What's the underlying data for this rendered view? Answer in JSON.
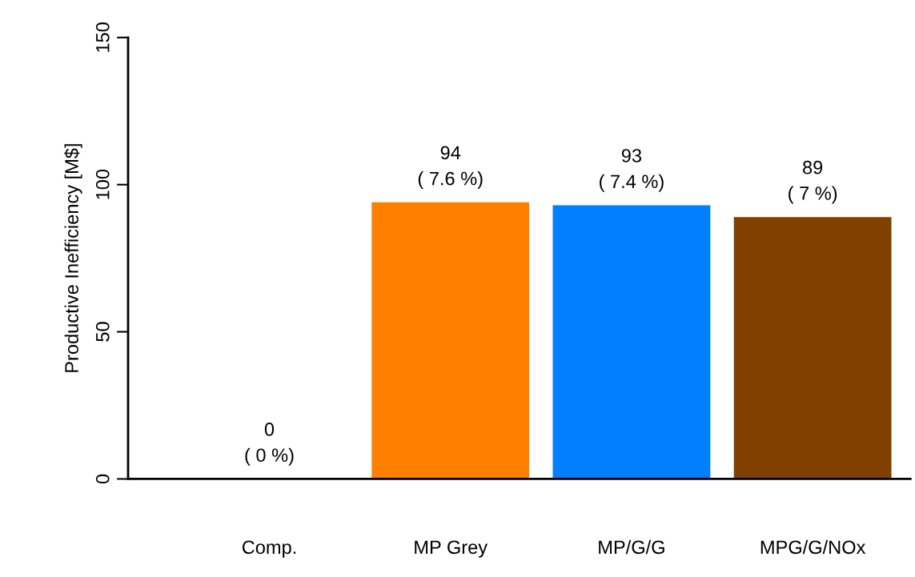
{
  "chart_data": {
    "type": "bar",
    "ylabel": "Productive Inefficiency [M$]",
    "categories": [
      "Comp.",
      "MP Grey",
      "MP/G/G",
      "MPG/G/NOx"
    ],
    "values": [
      0,
      94,
      93,
      89
    ],
    "colors": [
      "#808080",
      "#ff8000",
      "#0080ff",
      "#804000"
    ],
    "value_labels": [
      "0\n( 0 %)",
      "94\n( 7.6 %)",
      "93\n( 7.4 %)",
      "89\n( 7 %)"
    ],
    "ylim": [
      0,
      150
    ],
    "yticks": [
      0,
      50,
      100,
      150
    ],
    "grid": false,
    "legend": false
  }
}
